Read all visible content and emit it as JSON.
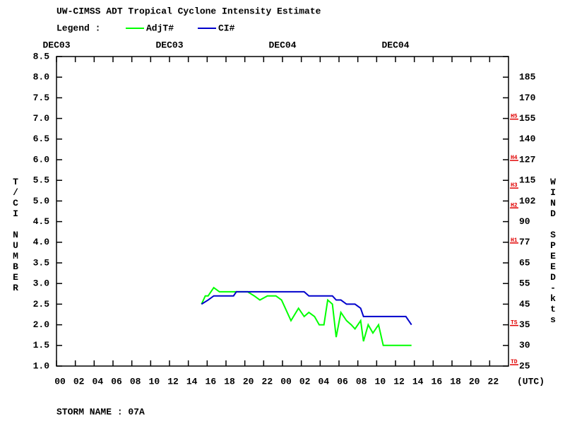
{
  "chart_data": {
    "type": "line",
    "title": "UW-CIMSS ADT Tropical Cyclone Intensity Estimate",
    "legend_label": "Legend :",
    "ylabel": "T/CI NUMBER",
    "y2label": "WIND SPEED-kts",
    "xlabel": "(UTC)",
    "footer": "STORM NAME : 07A",
    "xlim": [
      0,
      48
    ],
    "xticks": [
      {
        "value": 0,
        "label": "00"
      },
      {
        "value": 2,
        "label": "02"
      },
      {
        "value": 4,
        "label": "04"
      },
      {
        "value": 6,
        "label": "06"
      },
      {
        "value": 8,
        "label": "08"
      },
      10,
      12,
      14,
      16,
      18,
      20,
      22,
      {
        "value": 24,
        "label": "00"
      },
      {
        "value": 26,
        "label": "02"
      },
      {
        "value": 28,
        "label": "04"
      },
      {
        "value": 30,
        "label": "06"
      },
      {
        "value": 32,
        "label": "08"
      },
      {
        "value": 34,
        "label": "10"
      },
      {
        "value": 36,
        "label": "12"
      },
      {
        "value": 38,
        "label": "14"
      },
      {
        "value": 40,
        "label": "16"
      },
      {
        "value": 42,
        "label": "18"
      },
      {
        "value": 44,
        "label": "20"
      },
      {
        "value": 46,
        "label": "22"
      }
    ],
    "date_labels": [
      {
        "value": 0,
        "label": "DEC03"
      },
      {
        "value": 12,
        "label": "DEC03"
      },
      {
        "value": 24,
        "label": "DEC04"
      },
      {
        "value": 36,
        "label": "DEC04"
      }
    ],
    "ylim": [
      1.0,
      8.5
    ],
    "yticks": [
      {
        "value": 1,
        "label": "1.0"
      },
      1.5,
      {
        "value": 2,
        "label": "2.0"
      },
      2.5,
      {
        "value": 3,
        "label": "3.0"
      },
      3.5,
      {
        "value": 4,
        "label": "4.0"
      },
      4.5,
      {
        "value": 5,
        "label": "5.0"
      },
      5.5,
      {
        "value": 6,
        "label": "6.0"
      },
      6.5,
      {
        "value": 7,
        "label": "7.0"
      },
      7.5,
      {
        "value": 8,
        "label": "8.0"
      },
      8.5
    ],
    "wind_speed_ticks": [
      25,
      30,
      35,
      45,
      55,
      65,
      77,
      90,
      102,
      115,
      127,
      140,
      155,
      170,
      185
    ],
    "intensity_marks": [
      {
        "value": 7.0,
        "label": "H5"
      },
      {
        "value": 6.0,
        "label": "H4"
      },
      {
        "value": 5.33,
        "label": "H3"
      },
      {
        "value": 4.85,
        "label": "H2"
      },
      {
        "value": 4.0,
        "label": "H1"
      },
      {
        "value": 2.0,
        "label": "TS"
      },
      {
        "value": 1.05,
        "label": "TD"
      }
    ],
    "series": [
      {
        "name": "AdjT#",
        "color": "#00ff00",
        "x": [
          15.4,
          15.8,
          16.1,
          16.7,
          17.3,
          18.0,
          19.1,
          20.3,
          21.0,
          21.6,
          22.4,
          23.3,
          23.9,
          24.9,
          25.7,
          26.3,
          26.8,
          27.4,
          27.9,
          28.4,
          28.8,
          29.3,
          29.7,
          30.2,
          30.8,
          31.3,
          31.7,
          32.3,
          32.6,
          33.1,
          33.6,
          34.2,
          34.7,
          36.0,
          37.7
        ],
        "values": [
          2.5,
          2.7,
          2.7,
          2.9,
          2.8,
          2.8,
          2.8,
          2.8,
          2.7,
          2.6,
          2.7,
          2.7,
          2.6,
          2.1,
          2.4,
          2.2,
          2.3,
          2.2,
          2.0,
          2.0,
          2.6,
          2.5,
          1.7,
          2.3,
          2.1,
          2.0,
          1.9,
          2.1,
          1.6,
          2.0,
          1.8,
          2.0,
          1.5,
          1.5,
          1.5
        ]
      },
      {
        "name": "CI#",
        "color": "#0000cc",
        "x": [
          15.4,
          16.1,
          16.7,
          18.8,
          19.1,
          26.3,
          26.8,
          29.3,
          29.7,
          30.2,
          30.8,
          31.7,
          32.3,
          32.6,
          37.1,
          37.7
        ],
        "values": [
          2.5,
          2.6,
          2.7,
          2.7,
          2.8,
          2.8,
          2.7,
          2.7,
          2.6,
          2.6,
          2.5,
          2.5,
          2.4,
          2.2,
          2.2,
          2.0
        ]
      }
    ]
  }
}
